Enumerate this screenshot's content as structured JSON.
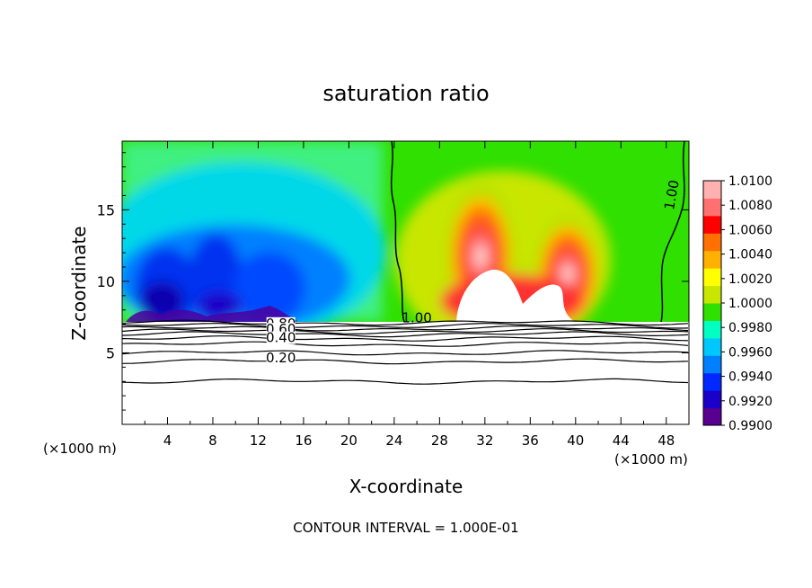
{
  "chart_data": {
    "type": "heatmap",
    "title": "saturation ratio",
    "xlabel": "X-coordinate",
    "ylabel": "Z-coordinate",
    "x_unit_left": "(×1000 m)",
    "x_unit_right": "(×1000 m)",
    "xlim": [
      0,
      50
    ],
    "ylim": [
      0,
      19.8
    ],
    "x_ticks": [
      4,
      8,
      12,
      16,
      20,
      24,
      28,
      32,
      36,
      40,
      44,
      48
    ],
    "x_tick_labels": [
      "4",
      "8",
      "12",
      "16",
      "20",
      "24",
      "28",
      "32",
      "36",
      "40",
      "44",
      "48"
    ],
    "y_ticks": [
      5,
      10,
      15
    ],
    "y_tick_labels": [
      "5",
      "10",
      "15"
    ],
    "colorbar": {
      "min": 0.99,
      "max": 1.01,
      "levels": [
        0.99,
        0.992,
        0.994,
        0.996,
        0.998,
        1.0,
        1.002,
        1.004,
        1.006,
        1.008,
        1.01
      ],
      "labels": [
        "0.9900",
        "0.9920",
        "0.9940",
        "0.9960",
        "0.9980",
        "1.0000",
        "1.0020",
        "1.0040",
        "1.0060",
        "1.0080",
        "1.0100"
      ],
      "colors": [
        "#5a0090",
        "#1a00c8",
        "#0028ff",
        "#0080ff",
        "#00c8ff",
        "#00ffc0",
        "#30e000",
        "#c8e600",
        "#ffff00",
        "#ffb000",
        "#ff7000",
        "#ff0000",
        "#ff7070",
        "#ffb0b0"
      ]
    },
    "surface_level_z": 7.2,
    "contour_labels": [
      {
        "text": "0.80",
        "x": 14.0,
        "z": 6.8
      },
      {
        "text": "0.60",
        "x": 14.0,
        "z": 6.4
      },
      {
        "text": "0.40",
        "x": 14.0,
        "z": 5.8
      },
      {
        "text": "0.20",
        "x": 14.0,
        "z": 4.4
      },
      {
        "text": "1.00",
        "x": 26.0,
        "z": 7.2
      },
      {
        "text": "1.00",
        "x": 48.8,
        "z": 16.0
      }
    ],
    "contour_line_z": [
      3.0,
      4.4,
      5.0,
      5.6,
      6.0,
      6.3,
      6.5,
      6.7,
      6.9,
      7.1
    ],
    "footnote": "CONTOUR INTERVAL = 1.000E-01"
  }
}
